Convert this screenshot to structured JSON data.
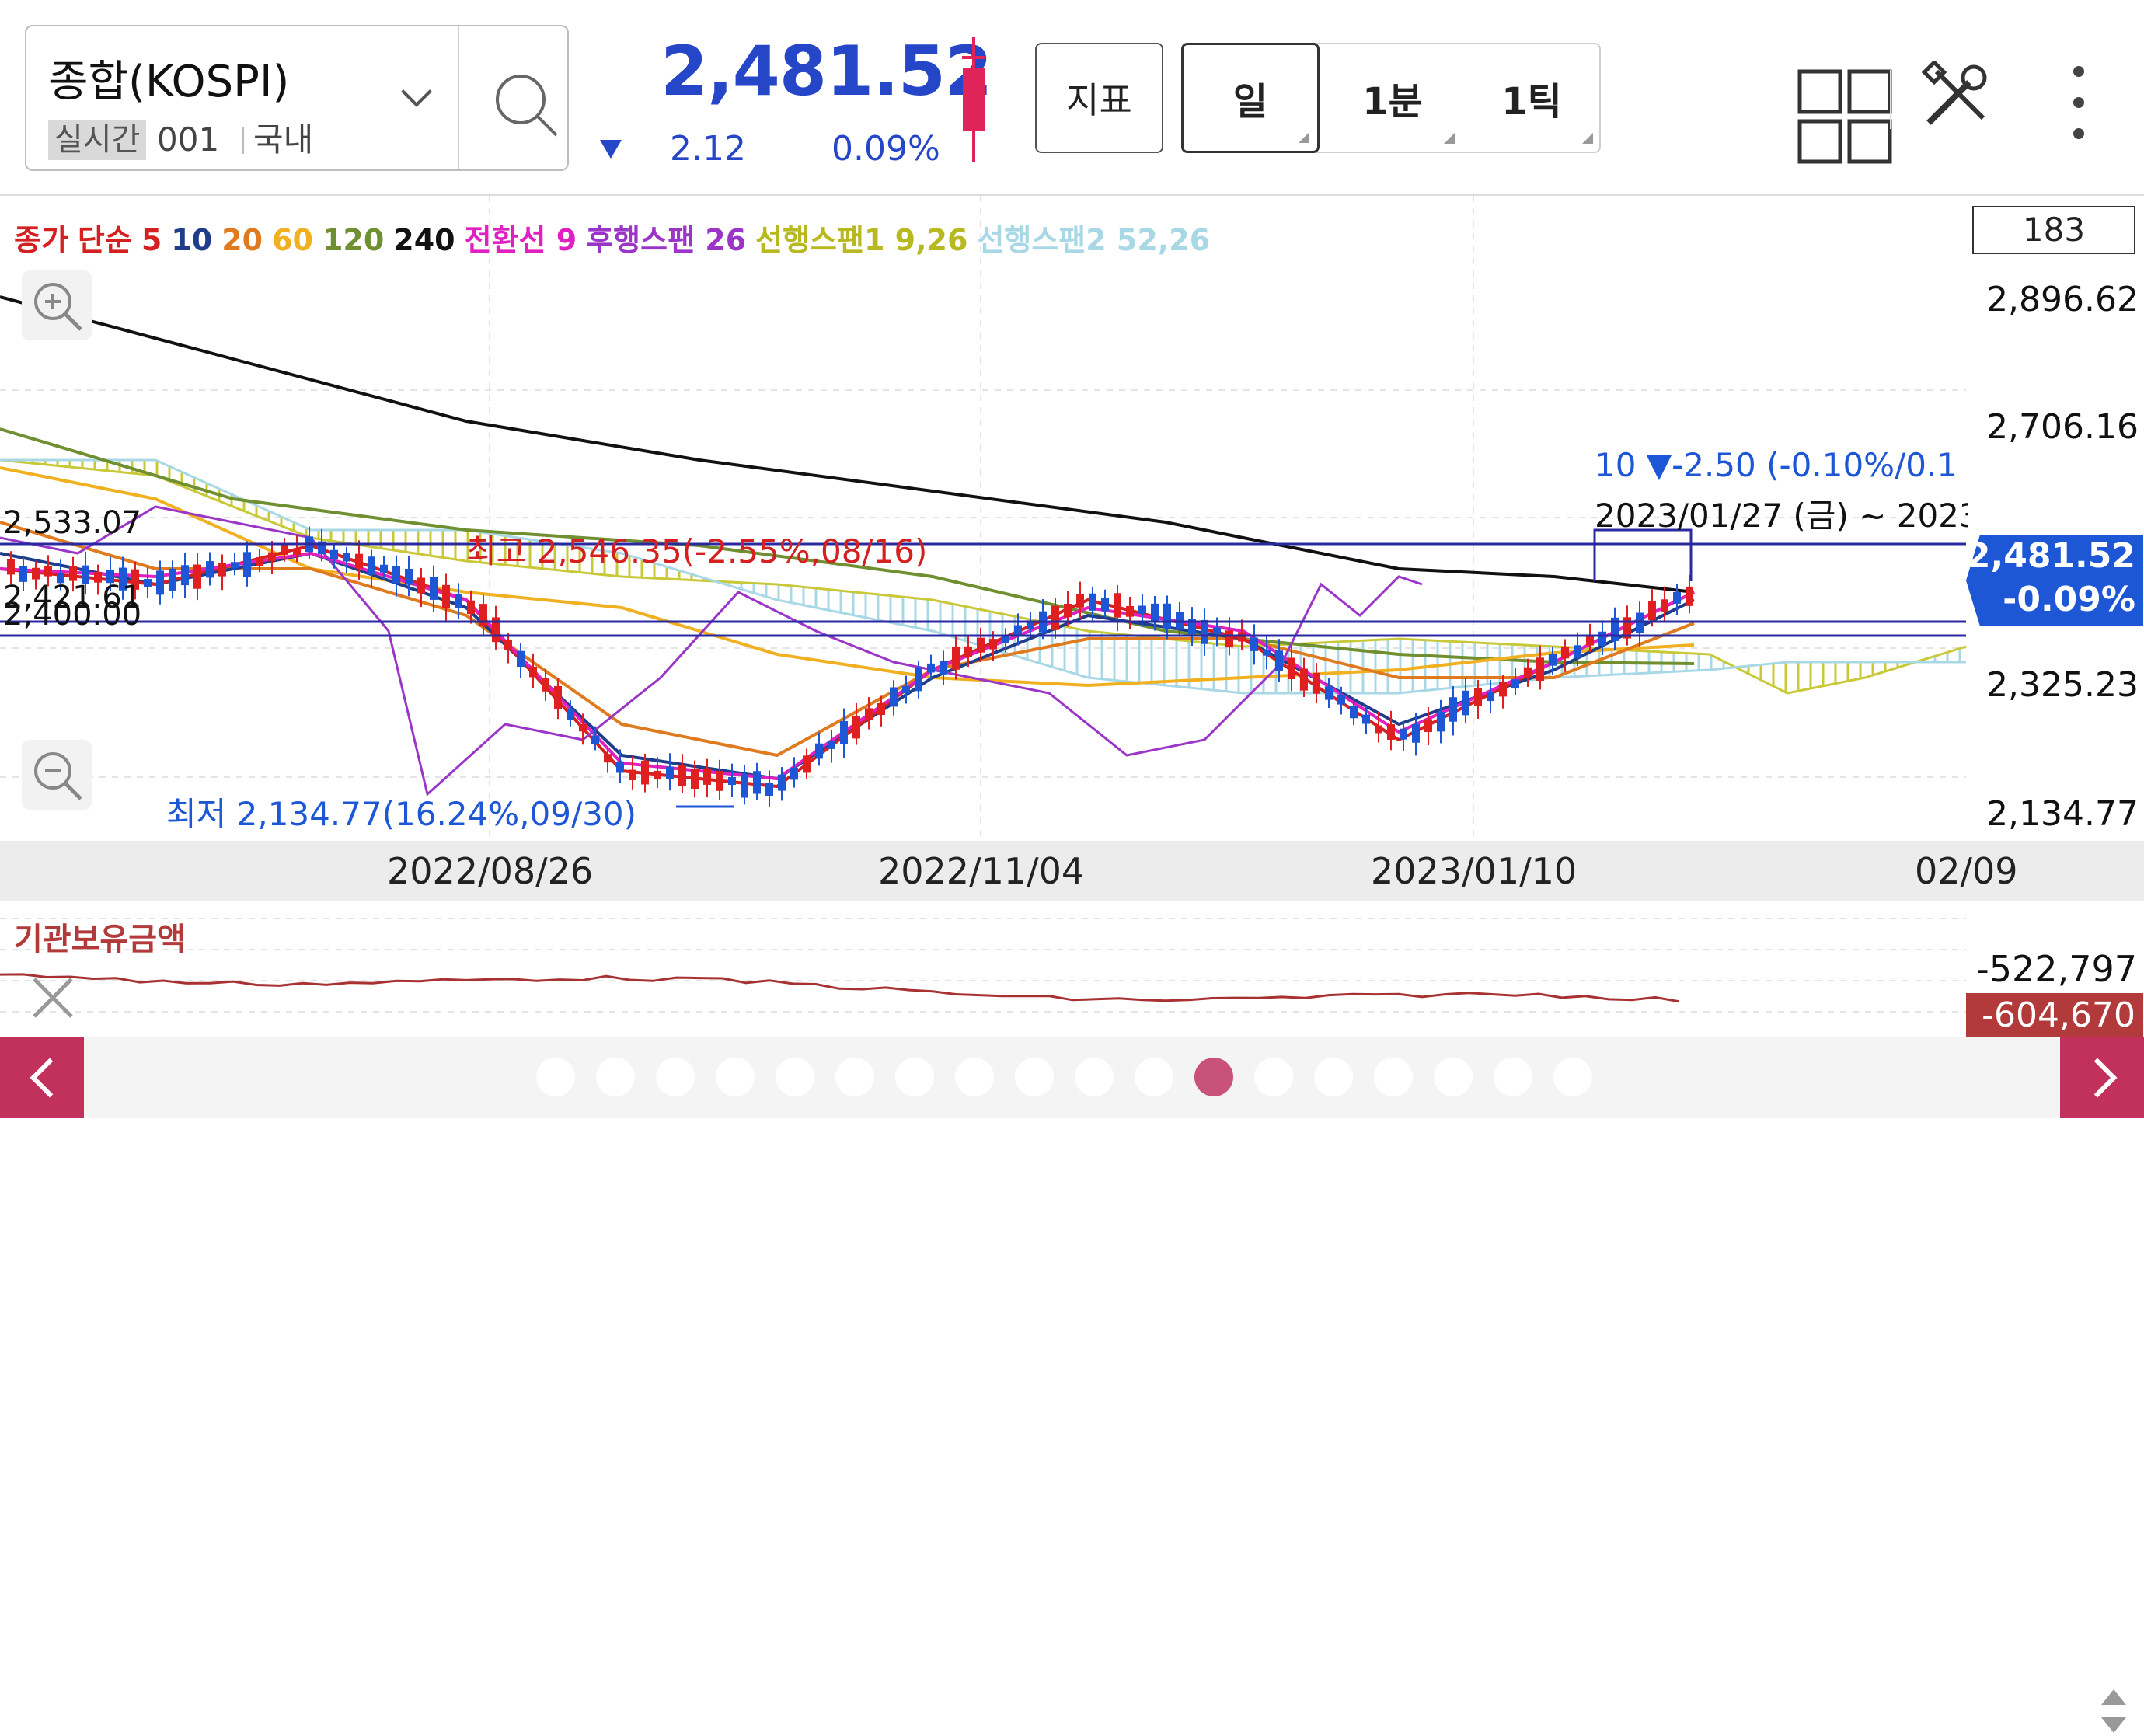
{
  "header": {
    "symbol_name": "종합(KOSPI)",
    "realtime_badge": "실시간",
    "symbol_code": "001",
    "market": "국내",
    "price": "2,481.52",
    "change": "2.12",
    "change_pct": "0.09%",
    "indicator_button": "지표",
    "period_tabs": [
      "일",
      "1분",
      "1틱"
    ],
    "selected_period": "일"
  },
  "legend": [
    {
      "text": "종가",
      "color": "#d42020"
    },
    {
      "text": "단순",
      "color": "#d42020"
    },
    {
      "text": "5",
      "color": "#d42020"
    },
    {
      "text": "10",
      "color": "#1f3d8a"
    },
    {
      "text": "20",
      "color": "#e07a1f"
    },
    {
      "text": "60",
      "color": "#f0b020"
    },
    {
      "text": "120",
      "color": "#6f8f30"
    },
    {
      "text": "240",
      "color": "#111111"
    },
    {
      "text": "전환선 9",
      "color": "#e020c0"
    },
    {
      "text": "후행스팬 26",
      "color": "#9a35c8"
    },
    {
      "text": "선행스팬1 9,26",
      "color": "#b8b820"
    },
    {
      "text": "선행스팬2 52,26",
      "color": "#a8d8e6"
    }
  ],
  "count": "183",
  "y_axis_labels": [
    "2,896.62",
    "2,706.16",
    "2,325.23",
    "2,134.77"
  ],
  "left_price_labels": [
    "2,533.07",
    "2,421.61",
    "2,400.00"
  ],
  "annotations": {
    "high": "최고 2,546.35(-2.55%,08/16)",
    "low": "최저 2,134.77(16.24%,09/30)",
    "period_info": "10 ▼-2.50 (-0.10%/0.1",
    "period_date": "2023/01/27 (금) ~ 2023"
  },
  "current_tag": {
    "price": "2,481.52",
    "pct": "-0.09%"
  },
  "x_axis_labels": [
    "2022/08/26",
    "2022/11/04",
    "2023/01/10",
    "02/09"
  ],
  "sub_chart": {
    "title": "기관보유금액",
    "high": "-522,797",
    "low": "-604,670"
  },
  "pager": {
    "count": 18,
    "active": 11
  },
  "colors": {
    "up": "#e02020",
    "down": "#1d57d6",
    "ma240": "#111111",
    "ma120": "#6f8f30",
    "ma60": "#f0b020",
    "ma20": "#e07a1f",
    "ma10": "#1f3d8a",
    "ma5": "#d42020",
    "conversion": "#e020c0",
    "lagging": "#9a35c8",
    "accent": "#c2305c"
  },
  "icons": {
    "search": "search-icon",
    "grid": "grid-layout-icon",
    "tools": "tools-icon",
    "more": "more-vertical-icon",
    "zoom_in": "zoom-in-icon",
    "zoom_out": "zoom-out-icon",
    "close": "close-icon"
  }
}
